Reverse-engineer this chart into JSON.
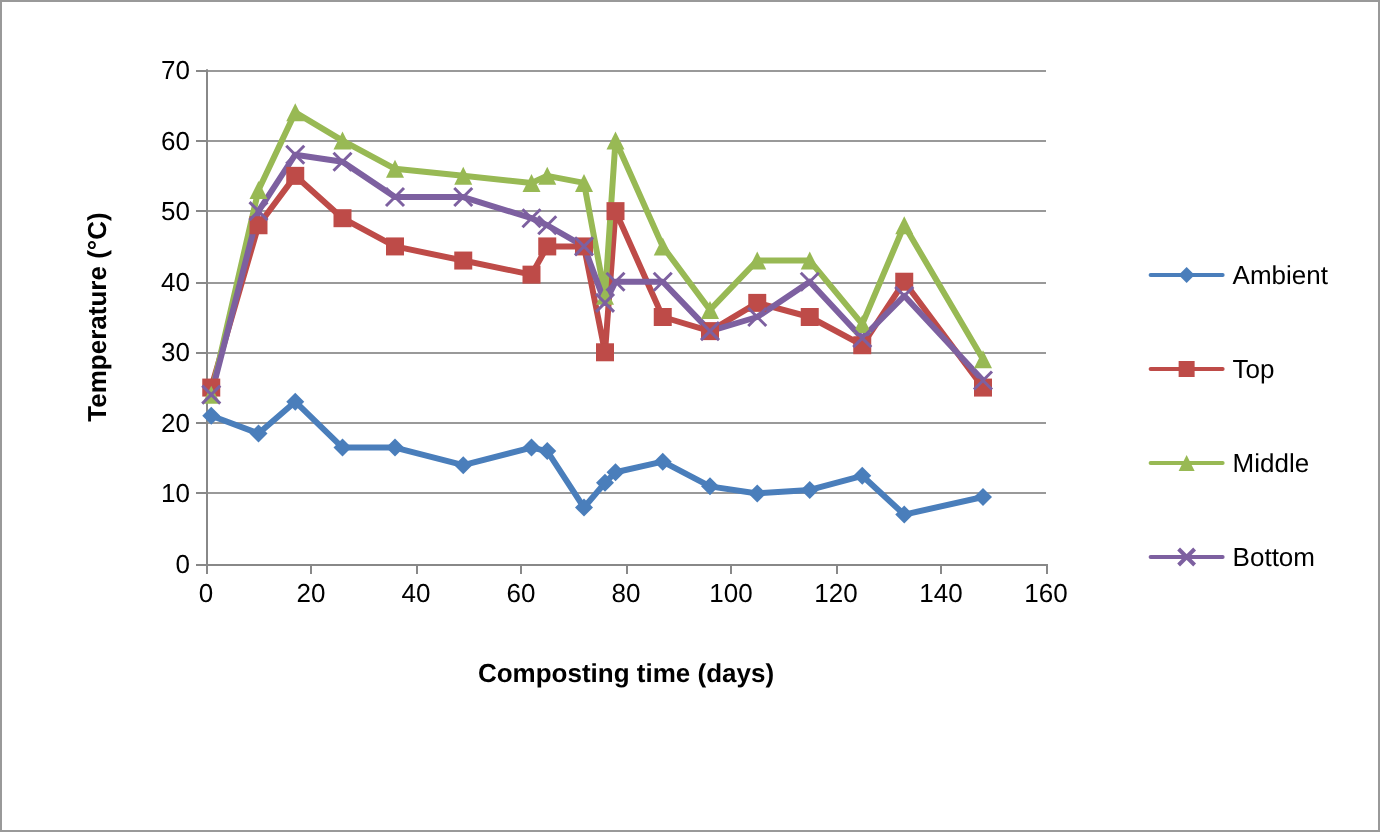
{
  "chart_data": {
    "type": "line",
    "xlabel": "Composting time (days)",
    "ylabel": "Temperature (°C)",
    "x": [
      1,
      10,
      17,
      26,
      36,
      49,
      62,
      65,
      72,
      76,
      78,
      87,
      96,
      105,
      115,
      125,
      133,
      148
    ],
    "series": [
      {
        "name": "Ambient",
        "color": "#4a7ebb",
        "marker": "diamond",
        "values": [
          21,
          18.5,
          23,
          16.5,
          16.5,
          14,
          16.5,
          16,
          8,
          11.5,
          13,
          14.5,
          11,
          10,
          10.5,
          12.5,
          7,
          9.5
        ]
      },
      {
        "name": "Top",
        "color": "#be4b48",
        "marker": "square",
        "values": [
          25,
          48,
          55,
          49,
          45,
          43,
          41,
          45,
          45,
          30,
          50,
          35,
          33,
          37,
          35,
          31,
          40,
          25
        ]
      },
      {
        "name": "Middle",
        "color": "#98b954",
        "marker": "triangle",
        "values": [
          24,
          53,
          64,
          60,
          56,
          55,
          54,
          55,
          54,
          38,
          60,
          45,
          36,
          43,
          43,
          34,
          48,
          29
        ]
      },
      {
        "name": "Bottom",
        "color": "#7d60a0",
        "marker": "cross",
        "values": [
          24,
          50,
          58,
          57,
          52,
          52,
          49,
          48,
          45,
          37,
          40,
          40,
          33,
          35,
          40,
          32,
          38,
          26
        ]
      }
    ],
    "xlim": [
      0,
      160
    ],
    "xticks": [
      0,
      20,
      40,
      60,
      80,
      100,
      120,
      140,
      160
    ],
    "ylim": [
      0,
      70
    ],
    "yticks": [
      0,
      10,
      20,
      30,
      40,
      50,
      60,
      70
    ],
    "grid": "y",
    "legend": "right",
    "line_style": "solid"
  }
}
